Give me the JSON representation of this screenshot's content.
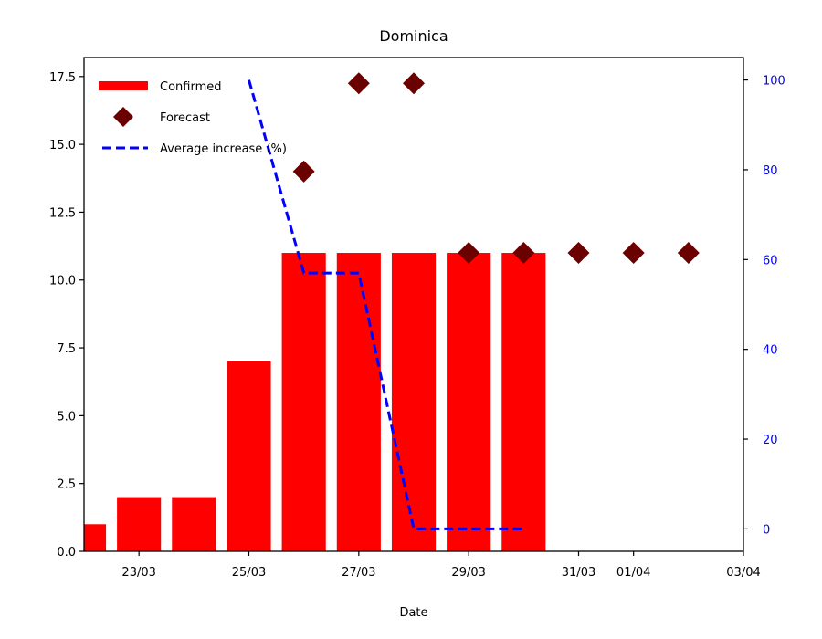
{
  "chart_data": {
    "type": "bar",
    "title": "Dominica",
    "xlabel": "Date",
    "ylabel": "",
    "ylabel_right": "",
    "ylim": [
      0,
      18.2
    ],
    "ylim_right": [
      -5,
      105
    ],
    "yticks": [
      0.0,
      2.5,
      5.0,
      7.5,
      10.0,
      12.5,
      15.0,
      17.5
    ],
    "yticks_right": [
      0,
      20,
      40,
      60,
      80,
      100
    ],
    "xticks": [
      {
        "date": "2020-03-23",
        "label": "23/03"
      },
      {
        "date": "2020-03-25",
        "label": "25/03"
      },
      {
        "date": "2020-03-27",
        "label": "27/03"
      },
      {
        "date": "2020-03-29",
        "label": "29/03"
      },
      {
        "date": "2020-03-31",
        "label": "31/03"
      },
      {
        "date": "2020-04-01",
        "label": "01/04"
      },
      {
        "date": "2020-04-03",
        "label": "03/04"
      }
    ],
    "xlim": [
      "2020-03-22",
      "2020-04-03"
    ],
    "legend_position": "top-left",
    "colors": {
      "confirmed": "#ff0000",
      "forecast": "#6b0000",
      "average": "#0000ff",
      "right_axis": "#0000ff"
    },
    "series": [
      {
        "name": "Confirmed",
        "kind": "bar",
        "points": [
          {
            "date": "2020-03-22",
            "value": 1
          },
          {
            "date": "2020-03-23",
            "value": 2
          },
          {
            "date": "2020-03-24",
            "value": 2
          },
          {
            "date": "2020-03-25",
            "value": 7
          },
          {
            "date": "2020-03-26",
            "value": 11
          },
          {
            "date": "2020-03-27",
            "value": 11
          },
          {
            "date": "2020-03-28",
            "value": 11
          },
          {
            "date": "2020-03-29",
            "value": 11
          },
          {
            "date": "2020-03-30",
            "value": 11
          }
        ]
      },
      {
        "name": "Forecast",
        "kind": "scatter",
        "points": [
          {
            "date": "2020-03-26",
            "value": 14
          },
          {
            "date": "2020-03-27",
            "value": 17.25
          },
          {
            "date": "2020-03-28",
            "value": 17.25
          },
          {
            "date": "2020-03-29",
            "value": 11
          },
          {
            "date": "2020-03-30",
            "value": 11
          },
          {
            "date": "2020-03-31",
            "value": 11
          },
          {
            "date": "2020-04-01",
            "value": 11
          },
          {
            "date": "2020-04-02",
            "value": 11
          }
        ]
      },
      {
        "name": "Average increase (%)",
        "kind": "line",
        "axis": "right",
        "points": [
          {
            "date": "2020-03-25",
            "value": 100
          },
          {
            "date": "2020-03-26",
            "value": 57
          },
          {
            "date": "2020-03-27",
            "value": 57
          },
          {
            "date": "2020-03-28",
            "value": 0
          },
          {
            "date": "2020-03-29",
            "value": 0
          },
          {
            "date": "2020-03-30",
            "value": 0
          }
        ]
      }
    ]
  }
}
